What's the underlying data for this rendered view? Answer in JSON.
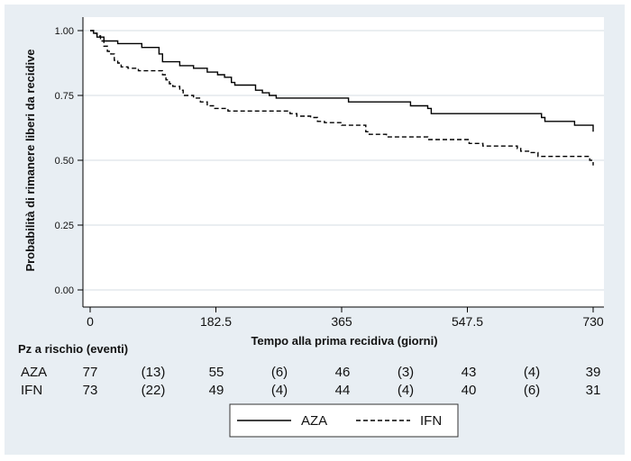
{
  "chart_data": {
    "type": "line",
    "title": "",
    "xlabel": "Tempo alla prima recidiva (giorni)",
    "ylabel": "Probabilità di rimanere liberi da recidive",
    "xlim": [
      0,
      730
    ],
    "ylim": [
      0,
      1
    ],
    "x_ticks": [
      "0",
      "182.5",
      "365",
      "547.5",
      "730"
    ],
    "y_ticks": [
      "0.00",
      "0.25",
      "0.50",
      "0.75",
      "1.00"
    ],
    "grid": "horizontal",
    "legend_position": "bottom",
    "series": [
      {
        "name": "AZA",
        "style": "solid",
        "color": "#000000",
        "points": [
          [
            0,
            1.0
          ],
          [
            5,
            0.99
          ],
          [
            10,
            0.975
          ],
          [
            20,
            0.96
          ],
          [
            40,
            0.95
          ],
          [
            75,
            0.935
          ],
          [
            100,
            0.91
          ],
          [
            105,
            0.88
          ],
          [
            125,
            0.88
          ],
          [
            130,
            0.865
          ],
          [
            145,
            0.865
          ],
          [
            150,
            0.855
          ],
          [
            165,
            0.855
          ],
          [
            170,
            0.84
          ],
          [
            180,
            0.84
          ],
          [
            185,
            0.83
          ],
          [
            195,
            0.82
          ],
          [
            205,
            0.8
          ],
          [
            210,
            0.79
          ],
          [
            235,
            0.79
          ],
          [
            240,
            0.77
          ],
          [
            250,
            0.76
          ],
          [
            260,
            0.75
          ],
          [
            270,
            0.74
          ],
          [
            370,
            0.74
          ],
          [
            375,
            0.725
          ],
          [
            460,
            0.725
          ],
          [
            465,
            0.71
          ],
          [
            490,
            0.7
          ],
          [
            495,
            0.68
          ],
          [
            645,
            0.68
          ],
          [
            655,
            0.665
          ],
          [
            660,
            0.65
          ],
          [
            700,
            0.65
          ],
          [
            703,
            0.635
          ],
          [
            728,
            0.635
          ],
          [
            730,
            0.61
          ]
        ]
      },
      {
        "name": "IFN",
        "style": "dashed",
        "color": "#000000",
        "points": [
          [
            0,
            1.0
          ],
          [
            5,
            0.99
          ],
          [
            10,
            0.98
          ],
          [
            15,
            0.96
          ],
          [
            20,
            0.94
          ],
          [
            25,
            0.92
          ],
          [
            30,
            0.91
          ],
          [
            35,
            0.885
          ],
          [
            40,
            0.875
          ],
          [
            45,
            0.86
          ],
          [
            55,
            0.855
          ],
          [
            65,
            0.855
          ],
          [
            70,
            0.845
          ],
          [
            100,
            0.845
          ],
          [
            105,
            0.83
          ],
          [
            110,
            0.81
          ],
          [
            115,
            0.795
          ],
          [
            120,
            0.785
          ],
          [
            130,
            0.77
          ],
          [
            135,
            0.75
          ],
          [
            150,
            0.74
          ],
          [
            160,
            0.725
          ],
          [
            170,
            0.71
          ],
          [
            180,
            0.7
          ],
          [
            190,
            0.7
          ],
          [
            200,
            0.69
          ],
          [
            280,
            0.69
          ],
          [
            290,
            0.68
          ],
          [
            300,
            0.67
          ],
          [
            320,
            0.665
          ],
          [
            330,
            0.65
          ],
          [
            340,
            0.645
          ],
          [
            360,
            0.645
          ],
          [
            365,
            0.635
          ],
          [
            395,
            0.635
          ],
          [
            400,
            0.61
          ],
          [
            405,
            0.6
          ],
          [
            420,
            0.6
          ],
          [
            430,
            0.59
          ],
          [
            480,
            0.59
          ],
          [
            490,
            0.58
          ],
          [
            540,
            0.58
          ],
          [
            550,
            0.565
          ],
          [
            570,
            0.555
          ],
          [
            600,
            0.555
          ],
          [
            620,
            0.545
          ],
          [
            625,
            0.535
          ],
          [
            640,
            0.53
          ],
          [
            650,
            0.515
          ],
          [
            715,
            0.515
          ],
          [
            725,
            0.5
          ],
          [
            730,
            0.48
          ]
        ]
      }
    ]
  },
  "risk_table": {
    "title": "Pz a rischio (eventi)",
    "rows": [
      {
        "label": "AZA",
        "values": [
          "77",
          "(13)",
          "55",
          "(6)",
          "46",
          "(3)",
          "43",
          "(4)",
          "39"
        ]
      },
      {
        "label": "IFN",
        "values": [
          "73",
          "(22)",
          "49",
          "(4)",
          "44",
          "(4)",
          "40",
          "(6)",
          "31"
        ]
      }
    ]
  },
  "colors": {
    "panel": "#e8eef3",
    "plot": "#ffffff",
    "grid": "#d6dde3",
    "line": "#000000"
  }
}
